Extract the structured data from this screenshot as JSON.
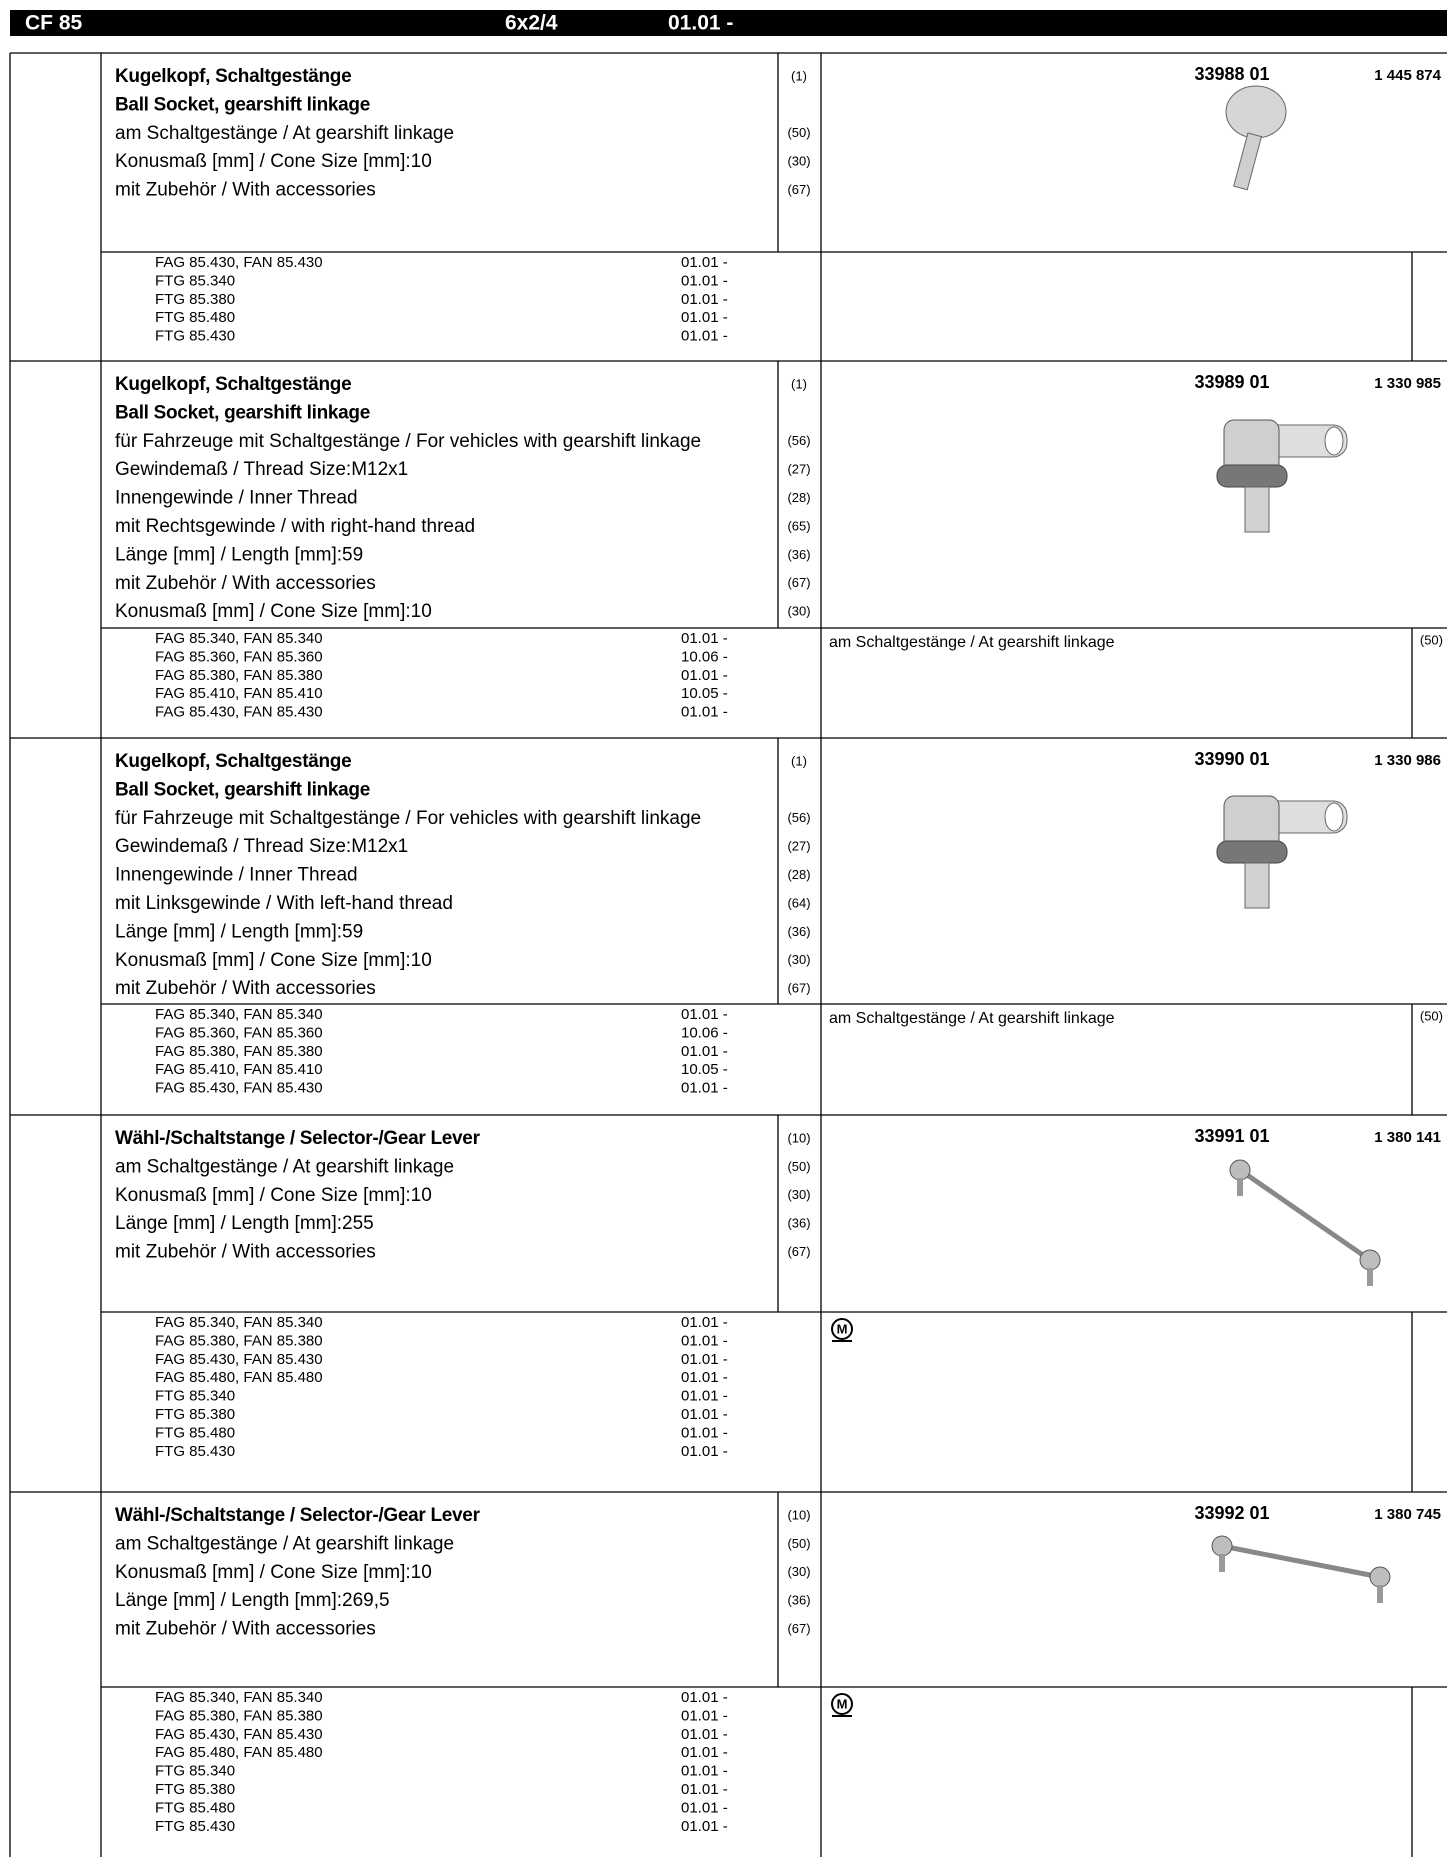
{
  "header": {
    "model": "CF 85",
    "config": "6x2/4",
    "date": "01.01 -"
  },
  "parts": [
    {
      "title": [
        "Kugelkopf, Schaltgestänge",
        "Ball Socket, gearshift linkage"
      ],
      "title_code": "(1)",
      "attributes": [
        {
          "text": "am Schaltgestänge / At gearshift linkage",
          "code": "(50)"
        },
        {
          "text": "Konusmaß [mm] / Cone Size [mm]:10",
          "code": "(30)"
        },
        {
          "text": "mit Zubehör / With accessories",
          "code": "(67)"
        }
      ],
      "part_no": "33988 01",
      "ref_no": "1 445 874",
      "models": [
        {
          "name": "FAG 85.430, FAN 85.430",
          "date": "01.01 -"
        },
        {
          "name": "FTG 85.340",
          "date": "01.01 -"
        },
        {
          "name": "FTG 85.380",
          "date": "01.01 -"
        },
        {
          "name": "FTG 85.480",
          "date": "01.01 -"
        },
        {
          "name": "FTG 85.430",
          "date": "01.01 -"
        }
      ]
    },
    {
      "title": [
        "Kugelkopf, Schaltgestänge",
        "Ball Socket, gearshift linkage"
      ],
      "title_code": "(1)",
      "attributes": [
        {
          "text": "für Fahrzeuge mit Schaltgestänge / For vehicles with gearshift linkage",
          "code": "(56)"
        },
        {
          "text": "Gewindemaß / Thread Size:M12x1",
          "code": "(27)"
        },
        {
          "text": "Innengewinde / Inner Thread",
          "code": "(28)"
        },
        {
          "text": "mit Rechtsgewinde / with right-hand thread",
          "code": "(65)"
        },
        {
          "text": "Länge [mm] / Length [mm]:59",
          "code": "(36)"
        },
        {
          "text": "mit Zubehör / With accessories",
          "code": "(67)"
        },
        {
          "text": "Konusmaß [mm] / Cone Size [mm]:10",
          "code": "(30)"
        }
      ],
      "part_no": "33989 01",
      "ref_no": "1 330 985",
      "note": "am Schaltgestänge / At gearshift linkage",
      "note_code": "(50)",
      "models": [
        {
          "name": "FAG 85.340, FAN 85.340",
          "date": "01.01 -"
        },
        {
          "name": "FAG 85.360, FAN 85.360",
          "date": "10.06 -"
        },
        {
          "name": "FAG 85.380, FAN 85.380",
          "date": "01.01 -"
        },
        {
          "name": "FAG 85.410, FAN 85.410",
          "date": "10.05 -"
        },
        {
          "name": "FAG 85.430, FAN 85.430",
          "date": "01.01 -"
        }
      ]
    },
    {
      "title": [
        "Kugelkopf, Schaltgestänge",
        "Ball Socket, gearshift linkage"
      ],
      "title_code": "(1)",
      "attributes": [
        {
          "text": "für Fahrzeuge mit Schaltgestänge / For vehicles with gearshift linkage",
          "code": "(56)"
        },
        {
          "text": "Gewindemaß / Thread Size:M12x1",
          "code": "(27)"
        },
        {
          "text": "Innengewinde / Inner Thread",
          "code": "(28)"
        },
        {
          "text": "mit Linksgewinde / With left-hand thread",
          "code": "(64)"
        },
        {
          "text": "Länge [mm] / Length [mm]:59",
          "code": "(36)"
        },
        {
          "text": "Konusmaß [mm] / Cone Size [mm]:10",
          "code": "(30)"
        },
        {
          "text": "mit Zubehör / With accessories",
          "code": "(67)"
        }
      ],
      "part_no": "33990 01",
      "ref_no": "1 330 986",
      "note": "am Schaltgestänge / At gearshift linkage",
      "note_code": "(50)",
      "models": [
        {
          "name": "FAG 85.340, FAN 85.340",
          "date": "01.01 -"
        },
        {
          "name": "FAG 85.360, FAN 85.360",
          "date": "10.06 -"
        },
        {
          "name": "FAG 85.380, FAN 85.380",
          "date": "01.01 -"
        },
        {
          "name": "FAG 85.410, FAN 85.410",
          "date": "10.05 -"
        },
        {
          "name": "FAG 85.430, FAN 85.430",
          "date": "01.01 -"
        }
      ]
    },
    {
      "title": [
        "Wähl-/Schaltstange / Selector-/Gear Lever"
      ],
      "title_code": "(10)",
      "attributes": [
        {
          "text": "am Schaltgestänge / At gearshift linkage",
          "code": "(50)"
        },
        {
          "text": "Konusmaß [mm] / Cone Size [mm]:10",
          "code": "(30)"
        },
        {
          "text": "Länge [mm] / Length [mm]:255",
          "code": "(36)"
        },
        {
          "text": "mit Zubehör / With accessories",
          "code": "(67)"
        }
      ],
      "part_no": "33991 01",
      "ref_no": "1 380 141",
      "symbol": "M",
      "models": [
        {
          "name": "FAG 85.340, FAN 85.340",
          "date": "01.01 -"
        },
        {
          "name": "FAG 85.380, FAN 85.380",
          "date": "01.01 -"
        },
        {
          "name": "FAG 85.430, FAN 85.430",
          "date": "01.01 -"
        },
        {
          "name": "FAG 85.480, FAN 85.480",
          "date": "01.01 -"
        },
        {
          "name": "FTG 85.340",
          "date": "01.01 -"
        },
        {
          "name": "FTG 85.380",
          "date": "01.01 -"
        },
        {
          "name": "FTG 85.480",
          "date": "01.01 -"
        },
        {
          "name": "FTG 85.430",
          "date": "01.01 -"
        }
      ]
    },
    {
      "title": [
        "Wähl-/Schaltstange / Selector-/Gear Lever"
      ],
      "title_code": "(10)",
      "attributes": [
        {
          "text": "am Schaltgestänge / At gearshift linkage",
          "code": "(50)"
        },
        {
          "text": "Konusmaß [mm] / Cone Size [mm]:10",
          "code": "(30)"
        },
        {
          "text": "Länge [mm] / Length [mm]:269,5",
          "code": "(36)"
        },
        {
          "text": "mit Zubehör / With accessories",
          "code": "(67)"
        }
      ],
      "part_no": "33992 01",
      "ref_no": "1 380 745",
      "symbol": "M",
      "models": [
        {
          "name": "FAG 85.340, FAN 85.340",
          "date": "01.01 -"
        },
        {
          "name": "FAG 85.380, FAN 85.380",
          "date": "01.01 -"
        },
        {
          "name": "FAG 85.430, FAN 85.430",
          "date": "01.01 -"
        },
        {
          "name": "FAG 85.480, FAN 85.480",
          "date": "01.01 -"
        },
        {
          "name": "FTG 85.340",
          "date": "01.01 -"
        },
        {
          "name": "FTG 85.380",
          "date": "01.01 -"
        },
        {
          "name": "FTG 85.480",
          "date": "01.01 -"
        },
        {
          "name": "FTG 85.430",
          "date": "01.01 -"
        }
      ]
    }
  ]
}
